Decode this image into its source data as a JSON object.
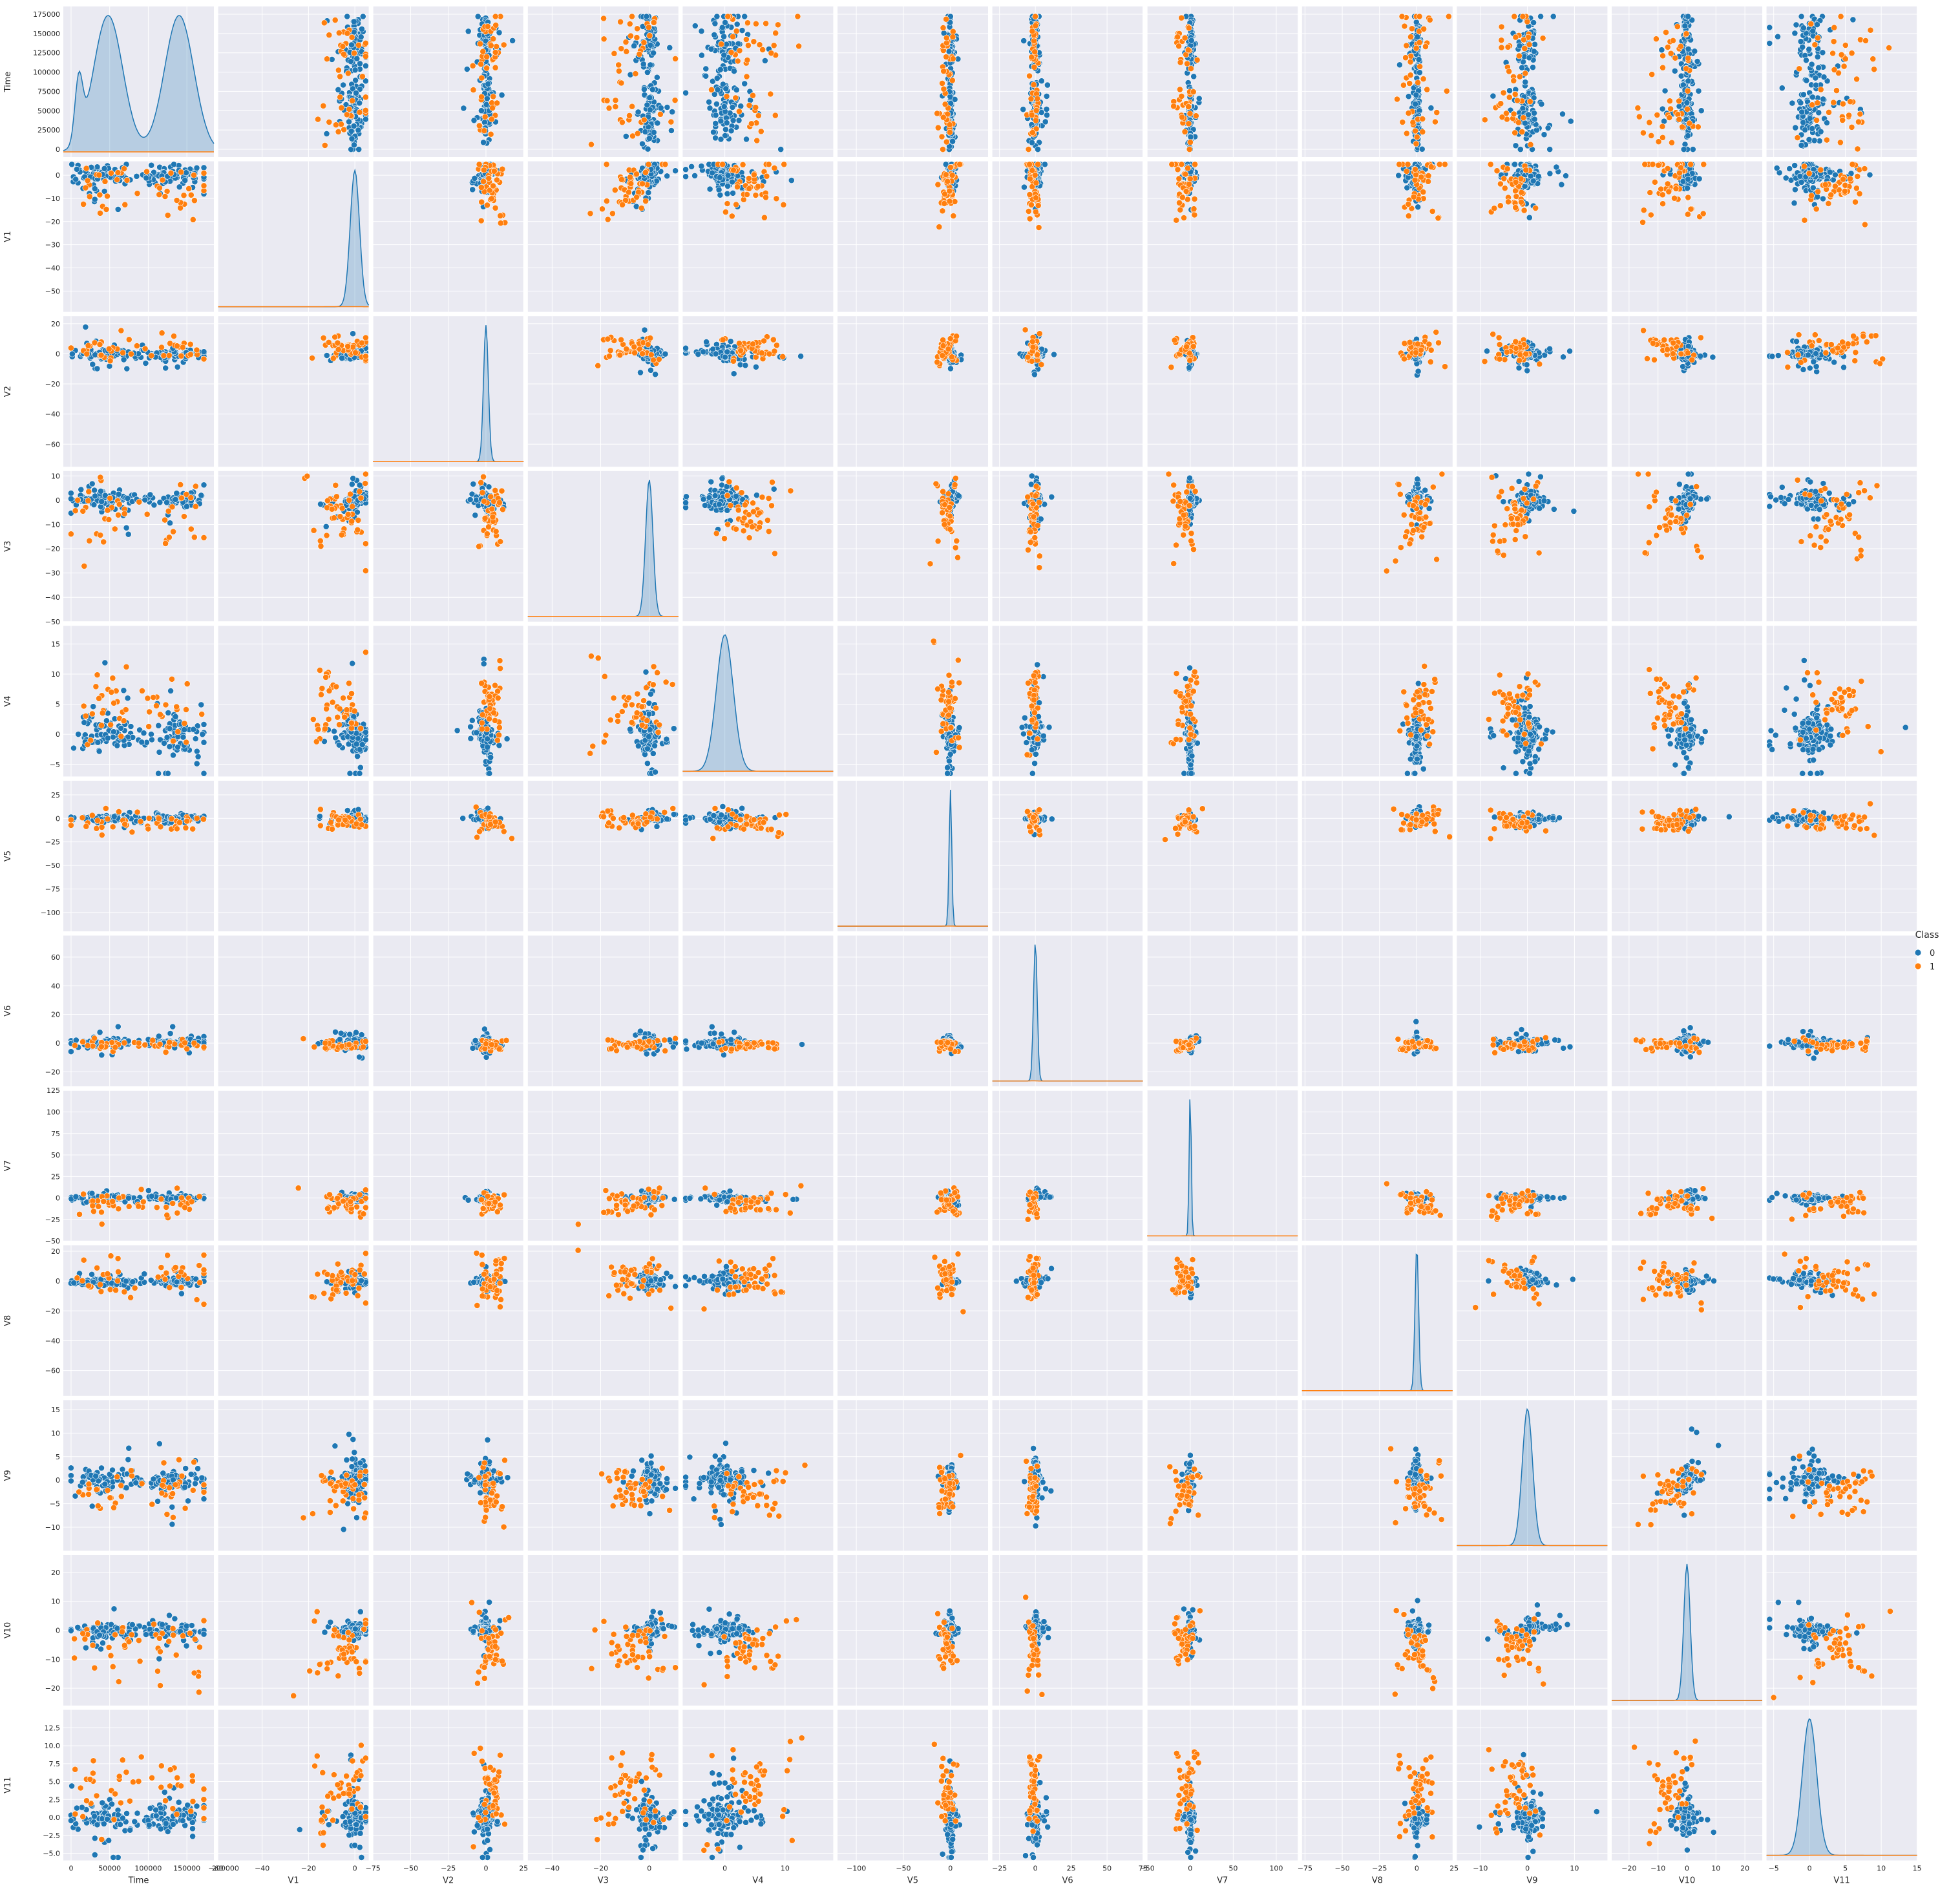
{
  "chart_data": {
    "type": "scatter",
    "subtype": "pairplot",
    "variables": [
      "Time",
      "V1",
      "V2",
      "V3",
      "V4",
      "V5",
      "V6",
      "V7",
      "V8",
      "V9",
      "V10",
      "V11"
    ],
    "diagonal": "kde",
    "hue": "Class",
    "legend": {
      "title": "Class",
      "placement": "right",
      "entries": [
        {
          "label": "0",
          "color": "#1f77b4"
        },
        {
          "label": "1",
          "color": "#ff7f0e"
        }
      ]
    },
    "style": {
      "background": "#eaeaf2",
      "grid": true,
      "grid_color": "#ffffff"
    },
    "axes": {
      "Time": {
        "range": [
          -10000,
          185000
        ],
        "ticks": [
          0,
          50000,
          100000,
          150000,
          200000
        ],
        "tick_labels": [
          "0",
          "50000",
          "100000",
          "150000",
          "200000"
        ],
        "y_ticks": [
          0,
          25000,
          50000,
          75000,
          100000,
          125000,
          150000,
          175000
        ],
        "y_tick_labels": [
          "0",
          "25000",
          "50000",
          "75000",
          "100000",
          "125000",
          "150000",
          "175000"
        ]
      },
      "V1": {
        "range": [
          -59,
          6
        ],
        "ticks": [
          -60,
          -40,
          -20,
          0
        ],
        "tick_labels": [
          "−60",
          "−40",
          "−20",
          "0"
        ],
        "y_ticks": [
          -50,
          -40,
          -30,
          -20,
          -10,
          0
        ],
        "y_tick_labels": [
          "−50",
          "−40",
          "−30",
          "−20",
          "−10",
          "0"
        ]
      },
      "V2": {
        "range": [
          -75,
          25
        ],
        "ticks": [
          -75,
          -50,
          -25,
          0,
          25
        ],
        "tick_labels": [
          "−75",
          "−50",
          "−25",
          "0",
          "25"
        ],
        "y_ticks": [
          -60,
          -40,
          -20,
          0,
          20
        ],
        "y_tick_labels": [
          "−60",
          "−40",
          "−20",
          "0",
          "20"
        ]
      },
      "V3": {
        "range": [
          -50,
          12
        ],
        "ticks": [
          -40,
          -20,
          0
        ],
        "tick_labels": [
          "−40",
          "−20",
          "0"
        ],
        "y_ticks": [
          -50,
          -40,
          -30,
          -20,
          -10,
          0,
          10
        ],
        "y_tick_labels": [
          "−50",
          "−40",
          "−30",
          "−20",
          "−10",
          "0",
          "10"
        ]
      },
      "V4": {
        "range": [
          -7,
          18
        ],
        "ticks": [
          0,
          10
        ],
        "tick_labels": [
          "0",
          "10"
        ],
        "y_ticks": [
          -5,
          0,
          5,
          10,
          15
        ],
        "y_tick_labels": [
          "−5",
          "0",
          "5",
          "10",
          "15"
        ]
      },
      "V5": {
        "range": [
          -120,
          40
        ],
        "ticks": [
          -100,
          -50,
          0
        ],
        "tick_labels": [
          "−100",
          "−50",
          "0"
        ],
        "y_ticks": [
          -100,
          -75,
          -50,
          -25,
          0,
          25
        ],
        "y_tick_labels": [
          "−100",
          "−75",
          "−50",
          "−25",
          "0",
          "25"
        ]
      },
      "V6": {
        "range": [
          -30,
          75
        ],
        "ticks": [
          -25,
          0,
          25,
          50,
          75
        ],
        "tick_labels": [
          "−25",
          "0",
          "25",
          "50",
          "75"
        ],
        "y_ticks": [
          -20,
          0,
          20,
          40,
          60
        ],
        "y_tick_labels": [
          "−20",
          "0",
          "20",
          "40",
          "60"
        ]
      },
      "V7": {
        "range": [
          -50,
          125
        ],
        "ticks": [
          -50,
          0,
          50,
          100
        ],
        "tick_labels": [
          "−50",
          "0",
          "50",
          "100"
        ],
        "y_ticks": [
          -50,
          -25,
          0,
          25,
          50,
          75,
          100,
          125
        ],
        "y_tick_labels": [
          "−50",
          "−25",
          "0",
          "25",
          "50",
          "75",
          "100",
          "125"
        ]
      },
      "V8": {
        "range": [
          -77,
          24
        ],
        "ticks": [
          -75,
          -50,
          -25,
          0,
          25
        ],
        "tick_labels": [
          "−75",
          "−50",
          "−25",
          "0",
          "25"
        ],
        "y_ticks": [
          -60,
          -40,
          -20,
          0,
          20
        ],
        "y_tick_labels": [
          "−60",
          "−40",
          "−20",
          "0",
          "20"
        ]
      },
      "V9": {
        "range": [
          -15,
          17
        ],
        "ticks": [
          -10,
          0,
          10
        ],
        "tick_labels": [
          "−10",
          "0",
          "10"
        ],
        "y_ticks": [
          -10,
          -5,
          0,
          5,
          10,
          15
        ],
        "y_tick_labels": [
          "−10",
          "−5",
          "0",
          "5",
          "10",
          "15"
        ]
      },
      "V10": {
        "range": [
          -26,
          26
        ],
        "ticks": [
          -20,
          -10,
          0,
          10,
          20
        ],
        "tick_labels": [
          "−20",
          "−10",
          "0",
          "10",
          "20"
        ],
        "y_ticks": [
          -20,
          -10,
          0,
          10,
          20
        ],
        "y_tick_labels": [
          "−20",
          "−10",
          "0",
          "10",
          "20"
        ]
      },
      "V11": {
        "range": [
          -6,
          15
        ],
        "ticks": [
          -5,
          0,
          5,
          10,
          15
        ],
        "tick_labels": [
          "−5",
          "0",
          "5",
          "10",
          "15"
        ],
        "y_ticks": [
          -5,
          -2.5,
          0,
          2.5,
          5,
          7.5,
          10,
          12.5
        ],
        "y_tick_labels": [
          "−5.0",
          "−2.5",
          "0.0",
          "2.5",
          "5.0",
          "7.5",
          "10.0",
          "12.5"
        ]
      }
    },
    "variable_stats": {
      "Time": {
        "class0": {
          "center": 95000,
          "spread": 48000
        },
        "class1": {
          "center": 80000,
          "spread": 45000
        }
      },
      "V1": {
        "class0": {
          "center": 0,
          "spread": 2.0
        },
        "class1": {
          "center": -4.7,
          "spread": 6.8
        }
      },
      "V2": {
        "class0": {
          "center": 0,
          "spread": 1.6
        },
        "class1": {
          "center": 3.6,
          "spread": 4.3
        }
      },
      "V3": {
        "class0": {
          "center": 0,
          "spread": 1.5
        },
        "class1": {
          "center": -7.0,
          "spread": 7.1
        }
      },
      "V4": {
        "class0": {
          "center": 0,
          "spread": 1.4
        },
        "class1": {
          "center": 4.5,
          "spread": 2.9
        }
      },
      "V5": {
        "class0": {
          "center": 0,
          "spread": 1.4
        },
        "class1": {
          "center": -3.2,
          "spread": 5.4
        }
      },
      "V6": {
        "class0": {
          "center": 0,
          "spread": 1.3
        },
        "class1": {
          "center": -1.4,
          "spread": 1.9
        }
      },
      "V7": {
        "class0": {
          "center": 0,
          "spread": 1.2
        },
        "class1": {
          "center": -5.6,
          "spread": 7.2
        }
      },
      "V8": {
        "class0": {
          "center": 0,
          "spread": 1.2
        },
        "class1": {
          "center": 0.6,
          "spread": 6.8
        }
      },
      "V9": {
        "class0": {
          "center": 0,
          "spread": 1.1
        },
        "class1": {
          "center": -2.6,
          "spread": 2.5
        }
      },
      "V10": {
        "class0": {
          "center": 0,
          "spread": 1.1
        },
        "class1": {
          "center": -5.7,
          "spread": 4.9
        }
      },
      "V11": {
        "class0": {
          "center": 0,
          "spread": 1.0
        },
        "class1": {
          "center": 3.8,
          "spread": 2.7
        }
      }
    },
    "correlations_class0": {
      "V1|V2": 0.6,
      "V1|V3": 0.55,
      "V2|V3": -0.4,
      "V2|V4": -0.55,
      "V1|V4": -0.4,
      "V5|V6": -0.6,
      "V5|V7": -0.6,
      "V6|V7": 0.6,
      "V9|V10": 0.7,
      "V3|V5": 0.45,
      "V3|V10": 0.45,
      "V7|V8": -0.2,
      "V2|V5": -0.4
    }
  }
}
